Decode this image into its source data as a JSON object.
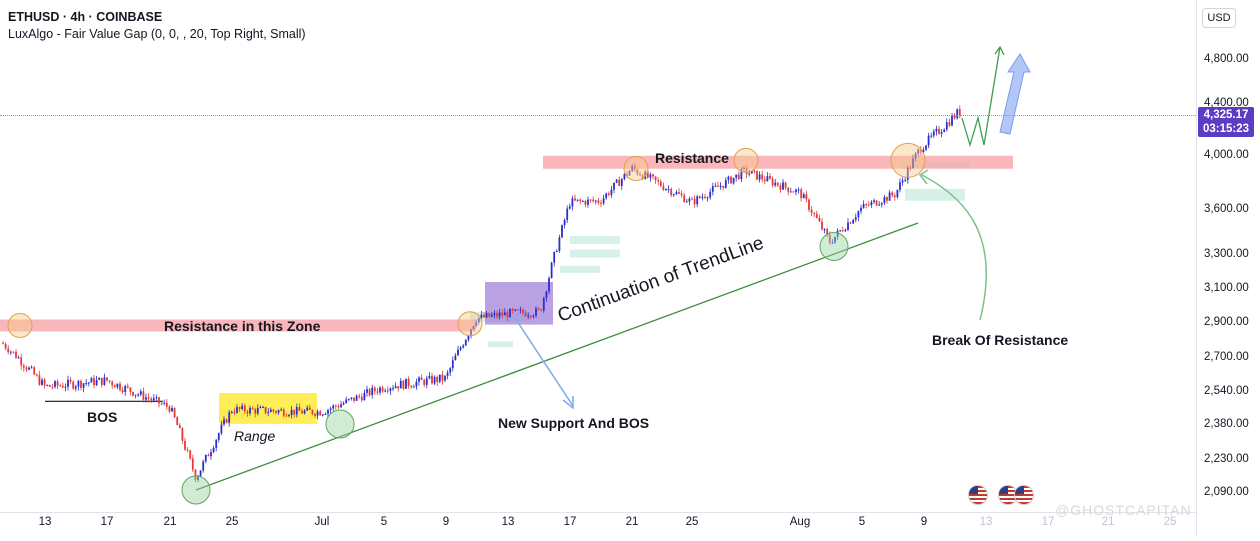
{
  "header": {
    "symbol_line": "ETHUSD · 4h · COINBASE",
    "indicator_line": "LuxAlgo - Fair Value Gap (0, 0, , 20, Top Right, Small)"
  },
  "axis": {
    "currency": "USD",
    "price_ticks": [
      "4,800.00",
      "4,400.00",
      "4,000.00",
      "3,600.00",
      "3,300.00",
      "3,100.00",
      "2,900.00",
      "2,700.00",
      "2,540.00",
      "2,380.00",
      "2,230.00",
      "2,090.00"
    ],
    "time_ticks": [
      "13",
      "17",
      "21",
      "25",
      "Jul",
      "5",
      "9",
      "13",
      "17",
      "21",
      "25",
      "Aug",
      "5",
      "9",
      "13",
      "17",
      "21",
      "25"
    ]
  },
  "current_price": {
    "value": "4,325.17",
    "countdown": "03:15:23"
  },
  "annotations": {
    "bos": "BOS",
    "range": "Range",
    "resistance_zone": "Resistance in this Zone",
    "trendline": "Continuation of TrendLine",
    "new_support": "New Support And BOS",
    "resistance": "Resistance",
    "break_of_resistance": "Break Of Resistance"
  },
  "watermark": "@GHOSTCAPITAN",
  "colors": {
    "up": "#2a2ed0",
    "down": "#e53935",
    "resistance_zone": "#f8a5aa",
    "range_box": "#ffeb3b",
    "purple_box": "#9c7bd6",
    "trendline": "#3d8f3d",
    "fvg": "#cdeee4",
    "tag": "#5b3cc4"
  },
  "chart_data": {
    "type": "candlestick",
    "title": "ETHUSD · 4h · COINBASE",
    "ylabel": "USD",
    "ylim": [
      2050,
      4950
    ],
    "x": [
      "Jun 10",
      "Jun 13",
      "Jun 17",
      "Jun 21",
      "Jun 23",
      "Jun 25",
      "Jun 29",
      "Jul 1",
      "Jul 5",
      "Jul 9",
      "Jul 10",
      "Jul 13",
      "Jul 15",
      "Jul 17",
      "Jul 19",
      "Jul 21",
      "Jul 25",
      "Jul 28",
      "Aug 1",
      "Aug 4",
      "Aug 5",
      "Aug 8",
      "Aug 9",
      "Aug 11"
    ],
    "close": [
      2780,
      2560,
      2590,
      2460,
      2150,
      2450,
      2440,
      2440,
      2560,
      2600,
      2920,
      2950,
      2960,
      3650,
      3660,
      3900,
      3650,
      3880,
      3720,
      3380,
      3610,
      3710,
      4050,
      4325
    ],
    "levels": {
      "resistance_zone": 2880,
      "resistance": 3950,
      "bos": 2490,
      "range": [
        2400,
        2520
      ]
    }
  }
}
